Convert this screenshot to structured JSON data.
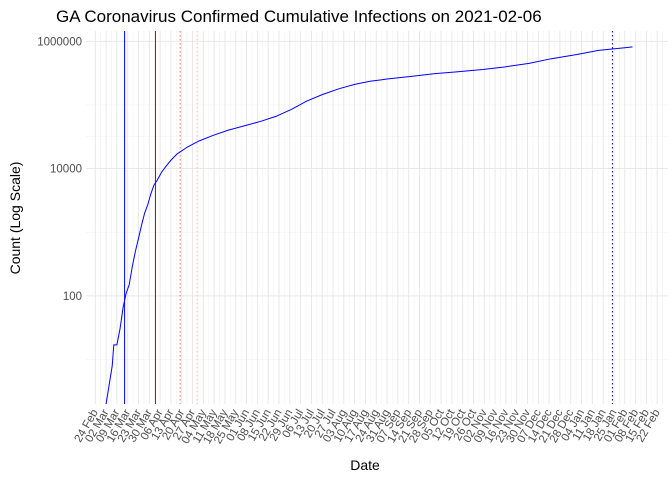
{
  "chart_data": {
    "type": "line",
    "title": "GA Coronavirus Confirmed Cumulative Infections on 2021-02-06",
    "xlabel": "Date",
    "ylabel": "Count (Log Scale)",
    "y_scale": "log10",
    "y_ticks": [
      100,
      10000,
      1000000
    ],
    "y_tick_labels": [
      "100",
      "10000",
      "1000000"
    ],
    "xlim": [
      "2020-02-18",
      "2021-03-01"
    ],
    "ylim": [
      2,
      1450000
    ],
    "x_tick_dates": [
      "2020-02-24",
      "2020-03-02",
      "2020-03-09",
      "2020-03-16",
      "2020-03-23",
      "2020-03-30",
      "2020-04-06",
      "2020-04-13",
      "2020-04-20",
      "2020-04-27",
      "2020-05-04",
      "2020-05-11",
      "2020-05-18",
      "2020-05-25",
      "2020-06-01",
      "2020-06-08",
      "2020-06-15",
      "2020-06-22",
      "2020-06-29",
      "2020-07-06",
      "2020-07-13",
      "2020-07-20",
      "2020-07-27",
      "2020-08-03",
      "2020-08-10",
      "2020-08-17",
      "2020-08-24",
      "2020-08-31",
      "2020-09-07",
      "2020-09-14",
      "2020-09-21",
      "2020-09-28",
      "2020-10-05",
      "2020-10-12",
      "2020-10-19",
      "2020-10-26",
      "2020-11-02",
      "2020-11-09",
      "2020-11-16",
      "2020-11-23",
      "2020-11-30",
      "2020-12-07",
      "2020-12-14",
      "2020-12-21",
      "2020-12-28",
      "2021-01-04",
      "2021-01-11",
      "2021-01-18",
      "2021-01-25",
      "2021-02-01",
      "2021-02-08",
      "2021-02-15",
      "2021-02-22"
    ],
    "x_tick_labels": [
      "24 Feb",
      "02 Mar",
      "09 Mar",
      "16 Mar",
      "23 Mar",
      "30 Mar",
      "06 Apr",
      "13 Apr",
      "20 Apr",
      "27 Apr",
      "04 May",
      "11 May",
      "18 May",
      "25 May",
      "01 Jun",
      "08 Jun",
      "15 Jun",
      "22 Jun",
      "29 Jun",
      "06 Jul",
      "13 Jul",
      "20 Jul",
      "27 Jul",
      "03 Aug",
      "10 Aug",
      "17 Aug",
      "24 Aug",
      "31 Aug",
      "07 Sep",
      "14 Sep",
      "21 Sep",
      "28 Sep",
      "05 Oct",
      "12 Oct",
      "19 Oct",
      "26 Oct",
      "02 Nov",
      "09 Nov",
      "16 Nov",
      "23 Nov",
      "30 Nov",
      "07 Dec",
      "14 Dec",
      "21 Dec",
      "28 Dec",
      "04 Jan",
      "11 Jan",
      "18 Jan",
      "25 Jan",
      "01 Feb",
      "08 Feb",
      "15 Feb",
      "22 Feb"
    ],
    "grid": "on",
    "series": [
      {
        "color": "#0000ff",
        "points": [
          [
            "2020-03-02",
            2
          ],
          [
            "2020-03-04",
            4
          ],
          [
            "2020-03-06",
            8
          ],
          [
            "2020-03-07",
            17
          ],
          [
            "2020-03-09",
            17
          ],
          [
            "2020-03-11",
            30
          ],
          [
            "2020-03-13",
            65
          ],
          [
            "2020-03-15",
            110
          ],
          [
            "2020-03-17",
            150
          ],
          [
            "2020-03-19",
            290
          ],
          [
            "2020-03-21",
            500
          ],
          [
            "2020-03-23",
            800
          ],
          [
            "2020-03-25",
            1300
          ],
          [
            "2020-03-27",
            2000
          ],
          [
            "2020-03-29",
            2700
          ],
          [
            "2020-03-31",
            4000
          ],
          [
            "2020-04-02",
            5500
          ],
          [
            "2020-04-04",
            6500
          ],
          [
            "2020-04-07",
            8800
          ],
          [
            "2020-04-10",
            11000
          ],
          [
            "2020-04-13",
            13500
          ],
          [
            "2020-04-17",
            17000
          ],
          [
            "2020-04-24",
            22000
          ],
          [
            "2020-05-01",
            27000
          ],
          [
            "2020-05-10",
            33000
          ],
          [
            "2020-05-20",
            40000
          ],
          [
            "2020-06-01",
            48000
          ],
          [
            "2020-06-10",
            55000
          ],
          [
            "2020-06-20",
            66000
          ],
          [
            "2020-06-30",
            85000
          ],
          [
            "2020-07-10",
            115000
          ],
          [
            "2020-07-20",
            145000
          ],
          [
            "2020-07-31",
            180000
          ],
          [
            "2020-08-10",
            210000
          ],
          [
            "2020-08-20",
            235000
          ],
          [
            "2020-08-31",
            255000
          ],
          [
            "2020-09-15",
            280000
          ],
          [
            "2020-10-01",
            310000
          ],
          [
            "2020-10-15",
            330000
          ],
          [
            "2020-11-01",
            360000
          ],
          [
            "2020-11-15",
            395000
          ],
          [
            "2020-12-01",
            450000
          ],
          [
            "2020-12-15",
            530000
          ],
          [
            "2021-01-01",
            620000
          ],
          [
            "2021-01-15",
            720000
          ],
          [
            "2021-02-01",
            790000
          ],
          [
            "2021-02-06",
            815000
          ]
        ]
      }
    ],
    "vlines": [
      {
        "date": "2020-03-14",
        "color": "#0000ff",
        "style": "solid"
      },
      {
        "date": "2020-04-03",
        "color": "#cc0000",
        "style": "solid"
      },
      {
        "date": "2020-04-19",
        "color": "#ff6666",
        "style": "dotted"
      },
      {
        "date": "2020-04-30",
        "color": "#ffbbbb",
        "style": "dotted"
      },
      {
        "date": "2021-01-24",
        "color": "#00008b",
        "style": "dotted"
      }
    ]
  }
}
